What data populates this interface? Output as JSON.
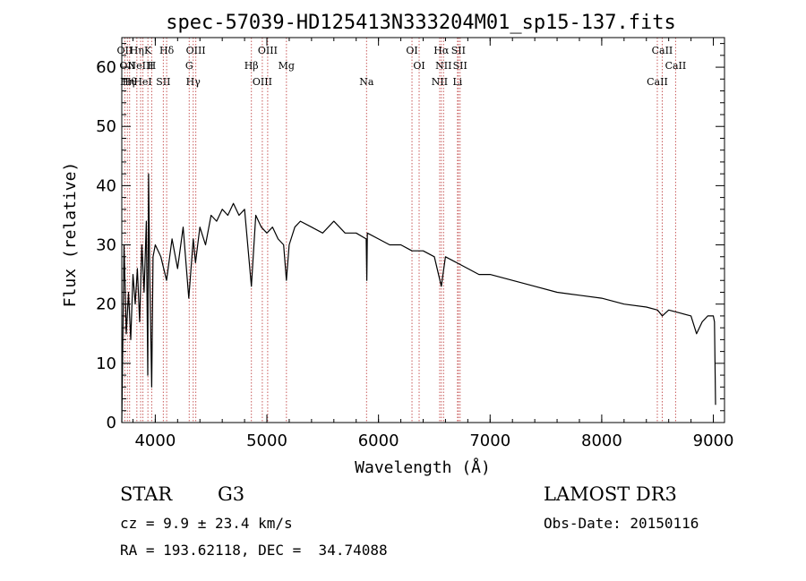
{
  "chart_data": {
    "type": "line",
    "title": "spec-57039-HD125413N333204M01_sp15-137.fits",
    "xlabel": "Wavelength (Å)",
    "ylabel": "Flux (relative)",
    "xlim": [
      3700,
      9100
    ],
    "ylim": [
      0,
      65
    ],
    "x_ticks": [
      4000,
      5000,
      6000,
      7000,
      8000,
      9000
    ],
    "y_ticks": [
      0,
      10,
      20,
      30,
      40,
      50,
      60
    ],
    "grid": false,
    "series": [
      {
        "name": "flux",
        "x": [
          3700,
          3720,
          3740,
          3760,
          3780,
          3800,
          3820,
          3840,
          3860,
          3880,
          3900,
          3920,
          3933,
          3940,
          3950,
          3968,
          3980,
          4000,
          4050,
          4101,
          4150,
          4200,
          4250,
          4300,
          4340,
          4360,
          4400,
          4450,
          4500,
          4550,
          4600,
          4650,
          4700,
          4750,
          4800,
          4861,
          4900,
          4950,
          5000,
          5050,
          5100,
          5150,
          5175,
          5200,
          5250,
          5300,
          5400,
          5500,
          5600,
          5700,
          5800,
          5890,
          5895,
          5900,
          6000,
          6100,
          6200,
          6300,
          6400,
          6500,
          6563,
          6600,
          6700,
          6800,
          6900,
          7000,
          7200,
          7400,
          7600,
          7800,
          8000,
          8200,
          8400,
          8500,
          8542,
          8600,
          8700,
          8800,
          8850,
          8900,
          8950,
          9000,
          9010,
          9020
        ],
        "y": [
          0,
          30,
          15,
          22,
          14,
          25,
          20,
          26,
          17,
          30,
          22,
          34,
          8,
          42,
          25,
          6,
          28,
          30,
          28,
          24,
          31,
          26,
          33,
          21,
          31,
          27,
          33,
          30,
          35,
          34,
          36,
          35,
          37,
          35,
          36,
          23,
          35,
          33,
          32,
          33,
          31,
          30,
          24,
          30,
          33,
          34,
          33,
          32,
          34,
          32,
          32,
          31,
          24,
          32,
          31,
          30,
          30,
          29,
          29,
          28,
          23,
          28,
          27,
          26,
          25,
          25,
          24,
          23,
          22,
          21.5,
          21,
          20,
          19.5,
          19,
          18,
          19,
          18.5,
          18,
          15,
          17,
          18,
          18,
          17,
          3
        ]
      }
    ],
    "line_marks": [
      {
        "wavelength": 3727,
        "labels": [
          "OII"
        ]
      },
      {
        "wavelength": 3750,
        "labels": [
          "OII",
          "Hη"
        ]
      },
      {
        "wavelength": 3770,
        "labels": [
          "Hθ"
        ]
      },
      {
        "wavelength": 3835,
        "labels": [
          "Hη"
        ]
      },
      {
        "wavelength": 3869,
        "labels": [
          "NeIII"
        ]
      },
      {
        "wavelength": 3889,
        "labels": [
          "HeI"
        ]
      },
      {
        "wavelength": 3934,
        "labels": [
          "K"
        ]
      },
      {
        "wavelength": 3968,
        "labels": [
          "H"
        ]
      },
      {
        "wavelength": 4072,
        "labels": [
          "SII"
        ]
      },
      {
        "wavelength": 4102,
        "labels": [
          "Hδ"
        ]
      },
      {
        "wavelength": 4304,
        "labels": [
          "G"
        ]
      },
      {
        "wavelength": 4340,
        "labels": [
          "Hγ"
        ]
      },
      {
        "wavelength": 4363,
        "labels": [
          "OIII"
        ]
      },
      {
        "wavelength": 4861,
        "labels": [
          "Hβ"
        ]
      },
      {
        "wavelength": 4959,
        "labels": [
          "OIII"
        ]
      },
      {
        "wavelength": 5007,
        "labels": [
          "OIII"
        ]
      },
      {
        "wavelength": 5175,
        "labels": [
          "Mg"
        ]
      },
      {
        "wavelength": 5893,
        "labels": [
          "Na"
        ]
      },
      {
        "wavelength": 6300,
        "labels": [
          "OI"
        ]
      },
      {
        "wavelength": 6364,
        "labels": [
          "OI"
        ]
      },
      {
        "wavelength": 6548,
        "labels": [
          "NII"
        ]
      },
      {
        "wavelength": 6563,
        "labels": [
          "Hα"
        ]
      },
      {
        "wavelength": 6583,
        "labels": [
          "NII"
        ]
      },
      {
        "wavelength": 6708,
        "labels": [
          "Li"
        ]
      },
      {
        "wavelength": 6716,
        "labels": [
          "SII"
        ]
      },
      {
        "wavelength": 6731,
        "labels": [
          "SII"
        ]
      },
      {
        "wavelength": 8498,
        "labels": [
          "CaII"
        ]
      },
      {
        "wavelength": 8542,
        "labels": [
          "CaII"
        ]
      },
      {
        "wavelength": 8662,
        "labels": [
          "CaII"
        ]
      }
    ],
    "colors": {
      "line": "#000000",
      "marks": "#c85a5a",
      "axes": "#000000"
    }
  },
  "info": {
    "object_type": "STAR",
    "subclass": "G3",
    "survey": "LAMOST DR3",
    "redshift": "cz = 9.9 ± 23.4 km/s",
    "obs_date": "Obs-Date: 20150116",
    "coords": "RA = 193.62118, DEC =  34.74088"
  }
}
